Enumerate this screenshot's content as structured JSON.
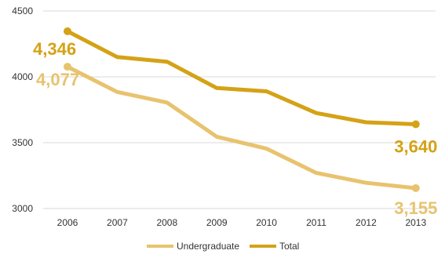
{
  "chart_data": {
    "type": "line",
    "categories": [
      "2006",
      "2007",
      "2008",
      "2009",
      "2010",
      "2011",
      "2012",
      "2013"
    ],
    "series": [
      {
        "name": "Undergraduate",
        "color": "#E8C36E",
        "values": [
          4077,
          3885,
          3805,
          3545,
          3455,
          3270,
          3195,
          3155
        ],
        "end_labels": [
          "4,077",
          "3,155"
        ]
      },
      {
        "name": "Total",
        "color": "#D4A216",
        "values": [
          4346,
          4150,
          4115,
          3915,
          3890,
          3725,
          3655,
          3640
        ],
        "end_labels": [
          "4,346",
          "3,640"
        ]
      }
    ],
    "y_ticks": [
      "3000",
      "3500",
      "4000",
      "4500"
    ],
    "ylim": [
      3000,
      4500
    ],
    "grid": "horizontal",
    "legend": "bottom"
  }
}
